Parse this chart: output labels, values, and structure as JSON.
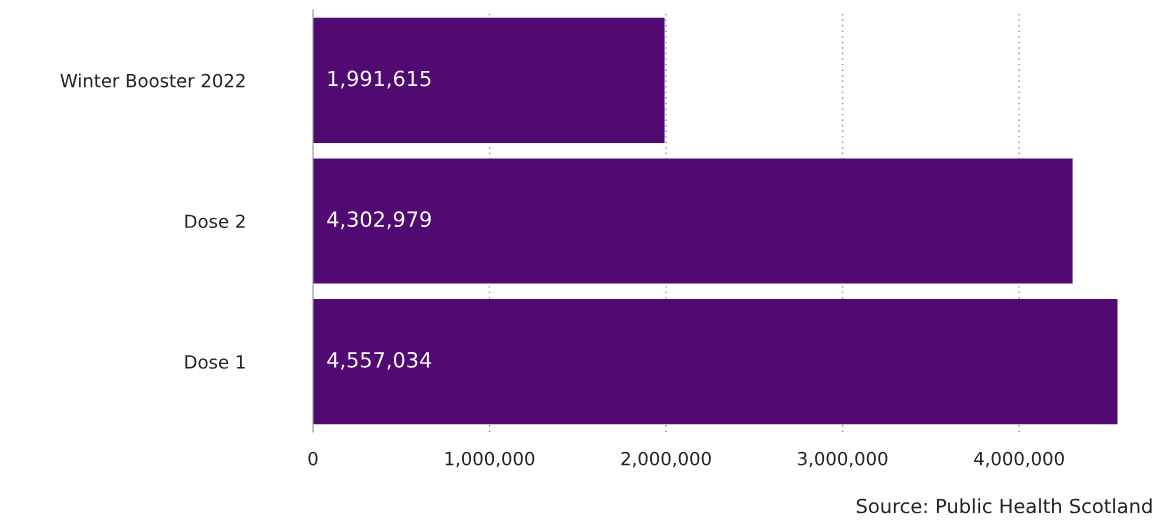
{
  "chart_data": {
    "type": "bar",
    "orientation": "horizontal",
    "categories": [
      "Winter Booster 2022",
      "Dose 2",
      "Dose 1"
    ],
    "values": [
      1991615,
      4302979,
      4557034
    ],
    "value_labels": [
      "1,991,615",
      "4,302,979",
      "4,557,034"
    ],
    "color": "#520a73",
    "xlim": [
      0,
      4560000
    ],
    "xticks": [
      0,
      {
        "value": 1000000,
        "label": "1,000,000"
      },
      {
        "value": 2000000,
        "label": "2,000,000"
      },
      {
        "value": 3000000,
        "label": "3,000,000"
      },
      {
        "value": 4000000,
        "label": "4,000,000"
      }
    ],
    "grid": "x",
    "annotations": [
      "Source: Public Health Scotland"
    ]
  }
}
